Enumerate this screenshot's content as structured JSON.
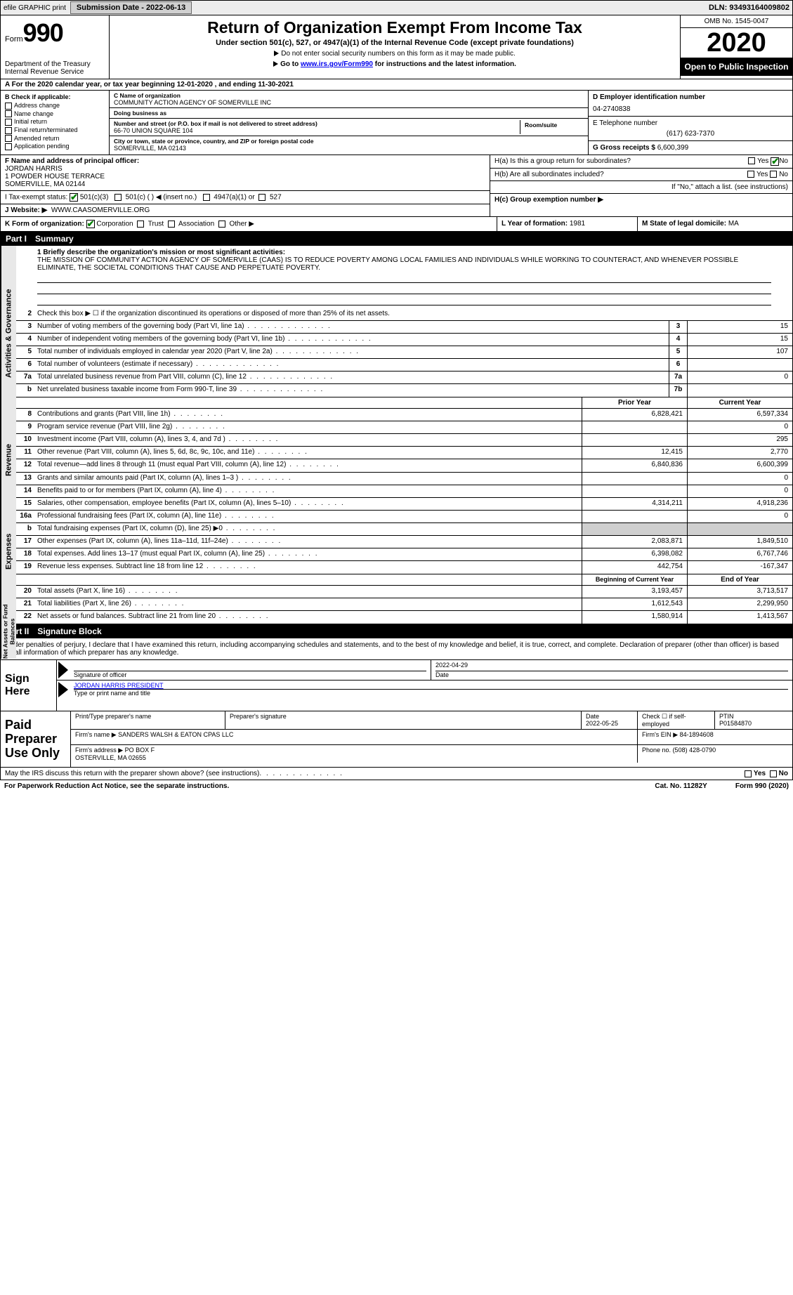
{
  "top": {
    "efile": "efile GRAPHIC print",
    "submission_label": "Submission Date - 2022-06-13",
    "dln": "DLN: 93493164009802"
  },
  "header": {
    "form_word": "Form",
    "form_num": "990",
    "dept": "Department of the Treasury\nInternal Revenue Service",
    "title": "Return of Organization Exempt From Income Tax",
    "subtitle": "Under section 501(c), 527, or 4947(a)(1) of the Internal Revenue Code (except private foundations)",
    "note": "Do not enter social security numbers on this form as it may be made public.",
    "goto_pre": "Go to ",
    "goto_link": "www.irs.gov/Form990",
    "goto_post": " for instructions and the latest information.",
    "omb": "OMB No. 1545-0047",
    "year": "2020",
    "open_pub": "Open to Public Inspection"
  },
  "period": "A For the 2020 calendar year, or tax year beginning 12-01-2020    , and ending 11-30-2021",
  "section_b": {
    "header": "B Check if applicable:",
    "items": [
      "Address change",
      "Name change",
      "Initial return",
      "Final return/terminated",
      "Amended return",
      "Application pending"
    ]
  },
  "section_c": {
    "name_lbl": "C Name of organization",
    "name": "COMMUNITY ACTION AGENCY OF SOMERVILLE INC",
    "dba_lbl": "Doing business as",
    "dba": "",
    "street_lbl": "Number and street (or P.O. box if mail is not delivered to street address)",
    "room_lbl": "Room/suite",
    "street": "66-70 UNION SQUARE 104",
    "city_lbl": "City or town, state or province, country, and ZIP or foreign postal code",
    "city": "SOMERVILLE, MA  02143"
  },
  "section_d": {
    "lbl": "D Employer identification number",
    "val": "04-2740838"
  },
  "section_e": {
    "lbl": "E Telephone number",
    "val": "(617) 623-7370"
  },
  "section_g": {
    "lbl": "G Gross receipts $",
    "val": "6,600,399"
  },
  "section_f": {
    "lbl": "F  Name and address of principal officer:",
    "name": "JORDAN HARRIS",
    "addr1": "1 POWDER HOUSE TERRACE",
    "addr2": "SOMERVILLE, MA  02144"
  },
  "section_h": {
    "a": "H(a)  Is this a group return for subordinates?",
    "b": "H(b)  Are all subordinates included?",
    "b_note": "If \"No,\" attach a list. (see instructions)",
    "c": "H(c)  Group exemption number ▶",
    "yes": "Yes",
    "no": "No"
  },
  "section_i": {
    "lbl": "I   Tax-exempt status:",
    "opts": [
      "501(c)(3)",
      "501(c) (   ) ◀ (insert no.)",
      "4947(a)(1) or",
      "527"
    ]
  },
  "section_j": {
    "lbl": "J   Website: ▶",
    "val": "WWW.CAASOMERVILLE.ORG"
  },
  "section_k": {
    "lbl": "K Form of organization:",
    "opts": [
      "Corporation",
      "Trust",
      "Association",
      "Other ▶"
    ]
  },
  "section_l": {
    "lbl": "L Year of formation:",
    "val": "1981"
  },
  "section_m": {
    "lbl": "M State of legal domicile:",
    "val": "MA"
  },
  "part1": {
    "hdr": "Part I",
    "title": "Summary",
    "gov_label": "Activities & Governance",
    "rev_label": "Revenue",
    "exp_label": "Expenses",
    "net_label": "Net Assets or Fund Balances",
    "mission_lbl": "1  Briefly describe the organization's mission or most significant activities:",
    "mission": "THE MISSION OF COMMUNITY ACTION AGENCY OF SOMERVILLE (CAAS) IS TO REDUCE POVERTY AMONG LOCAL FAMILIES AND INDIVIDUALS WHILE WORKING TO COUNTERACT, AND WHENEVER POSSIBLE ELIMINATE, THE SOCIETAL CONDITIONS THAT CAUSE AND PERPETUATE POVERTY.",
    "line2": "Check this box ▶ ☐ if the organization discontinued its operations or disposed of more than 25% of its net assets.",
    "gov_rows": [
      {
        "n": "3",
        "d": "Number of voting members of the governing body (Part VI, line 1a)",
        "b": "3",
        "v": "15"
      },
      {
        "n": "4",
        "d": "Number of independent voting members of the governing body (Part VI, line 1b)",
        "b": "4",
        "v": "15"
      },
      {
        "n": "5",
        "d": "Total number of individuals employed in calendar year 2020 (Part V, line 2a)",
        "b": "5",
        "v": "107"
      },
      {
        "n": "6",
        "d": "Total number of volunteers (estimate if necessary)",
        "b": "6",
        "v": ""
      },
      {
        "n": "7a",
        "d": "Total unrelated business revenue from Part VIII, column (C), line 12",
        "b": "7a",
        "v": "0"
      },
      {
        "n": "b",
        "d": "Net unrelated business taxable income from Form 990-T, line 39",
        "b": "7b",
        "v": ""
      }
    ],
    "prior_hdr": "Prior Year",
    "curr_hdr": "Current Year",
    "rev_rows": [
      {
        "n": "8",
        "d": "Contributions and grants (Part VIII, line 1h)",
        "p": "6,828,421",
        "c": "6,597,334"
      },
      {
        "n": "9",
        "d": "Program service revenue (Part VIII, line 2g)",
        "p": "",
        "c": "0"
      },
      {
        "n": "10",
        "d": "Investment income (Part VIII, column (A), lines 3, 4, and 7d )",
        "p": "",
        "c": "295"
      },
      {
        "n": "11",
        "d": "Other revenue (Part VIII, column (A), lines 5, 6d, 8c, 9c, 10c, and 11e)",
        "p": "12,415",
        "c": "2,770"
      },
      {
        "n": "12",
        "d": "Total revenue—add lines 8 through 11 (must equal Part VIII, column (A), line 12)",
        "p": "6,840,836",
        "c": "6,600,399"
      }
    ],
    "exp_rows": [
      {
        "n": "13",
        "d": "Grants and similar amounts paid (Part IX, column (A), lines 1–3 )",
        "p": "",
        "c": "0"
      },
      {
        "n": "14",
        "d": "Benefits paid to or for members (Part IX, column (A), line 4)",
        "p": "",
        "c": "0"
      },
      {
        "n": "15",
        "d": "Salaries, other compensation, employee benefits (Part IX, column (A), lines 5–10)",
        "p": "4,314,211",
        "c": "4,918,236"
      },
      {
        "n": "16a",
        "d": "Professional fundraising fees (Part IX, column (A), line 11e)",
        "p": "",
        "c": "0"
      },
      {
        "n": "b",
        "d": "Total fundraising expenses (Part IX, column (D), line 25) ▶0",
        "p": "shade",
        "c": "shade"
      },
      {
        "n": "17",
        "d": "Other expenses (Part IX, column (A), lines 11a–11d, 11f–24e)",
        "p": "2,083,871",
        "c": "1,849,510"
      },
      {
        "n": "18",
        "d": "Total expenses. Add lines 13–17 (must equal Part IX, column (A), line 25)",
        "p": "6,398,082",
        "c": "6,767,746"
      },
      {
        "n": "19",
        "d": "Revenue less expenses. Subtract line 18 from line 12",
        "p": "442,754",
        "c": "-167,347"
      }
    ],
    "beg_hdr": "Beginning of Current Year",
    "end_hdr": "End of Year",
    "net_rows": [
      {
        "n": "20",
        "d": "Total assets (Part X, line 16)",
        "p": "3,193,457",
        "c": "3,713,517"
      },
      {
        "n": "21",
        "d": "Total liabilities (Part X, line 26)",
        "p": "1,612,543",
        "c": "2,299,950"
      },
      {
        "n": "22",
        "d": "Net assets or fund balances. Subtract line 21 from line 20",
        "p": "1,580,914",
        "c": "1,413,567"
      }
    ]
  },
  "part2": {
    "hdr": "Part II",
    "title": "Signature Block",
    "jurat": "Under penalties of perjury, I declare that I have examined this return, including accompanying schedules and statements, and to the best of my knowledge and belief, it is true, correct, and complete. Declaration of preparer (other than officer) is based on all information of which preparer has any knowledge.",
    "sign_here": "Sign Here",
    "sig_officer": "Signature of officer",
    "sig_date": "2022-04-29",
    "date_lbl": "Date",
    "officer_name": "JORDAN HARRIS  PRESIDENT",
    "type_lbl": "Type or print name and title",
    "paid": "Paid Preparer Use Only",
    "prep_name_lbl": "Print/Type preparer's name",
    "prep_sig_lbl": "Preparer's signature",
    "prep_date_lbl": "Date",
    "prep_date": "2022-05-25",
    "check_if": "Check ☐ if self-employed",
    "ptin_lbl": "PTIN",
    "ptin": "P01584870",
    "firm_name_lbl": "Firm's name    ▶",
    "firm_name": "SANDERS WALSH & EATON CPAS LLC",
    "firm_ein_lbl": "Firm's EIN ▶",
    "firm_ein": "84-1894608",
    "firm_addr_lbl": "Firm's address ▶",
    "firm_addr": "PO BOX F\nOSTERVILLE, MA  02655",
    "phone_lbl": "Phone no.",
    "phone": "(508) 428-0790",
    "discuss": "May the IRS discuss this return with the preparer shown above? (see instructions)"
  },
  "footer": {
    "pra": "For Paperwork Reduction Act Notice, see the separate instructions.",
    "cat": "Cat. No. 11282Y",
    "form": "Form 990 (2020)"
  },
  "colors": {
    "link": "#0000ee",
    "check": "#008000",
    "shade": "#cfcfcf",
    "sidebar": "#e8e8e8"
  }
}
